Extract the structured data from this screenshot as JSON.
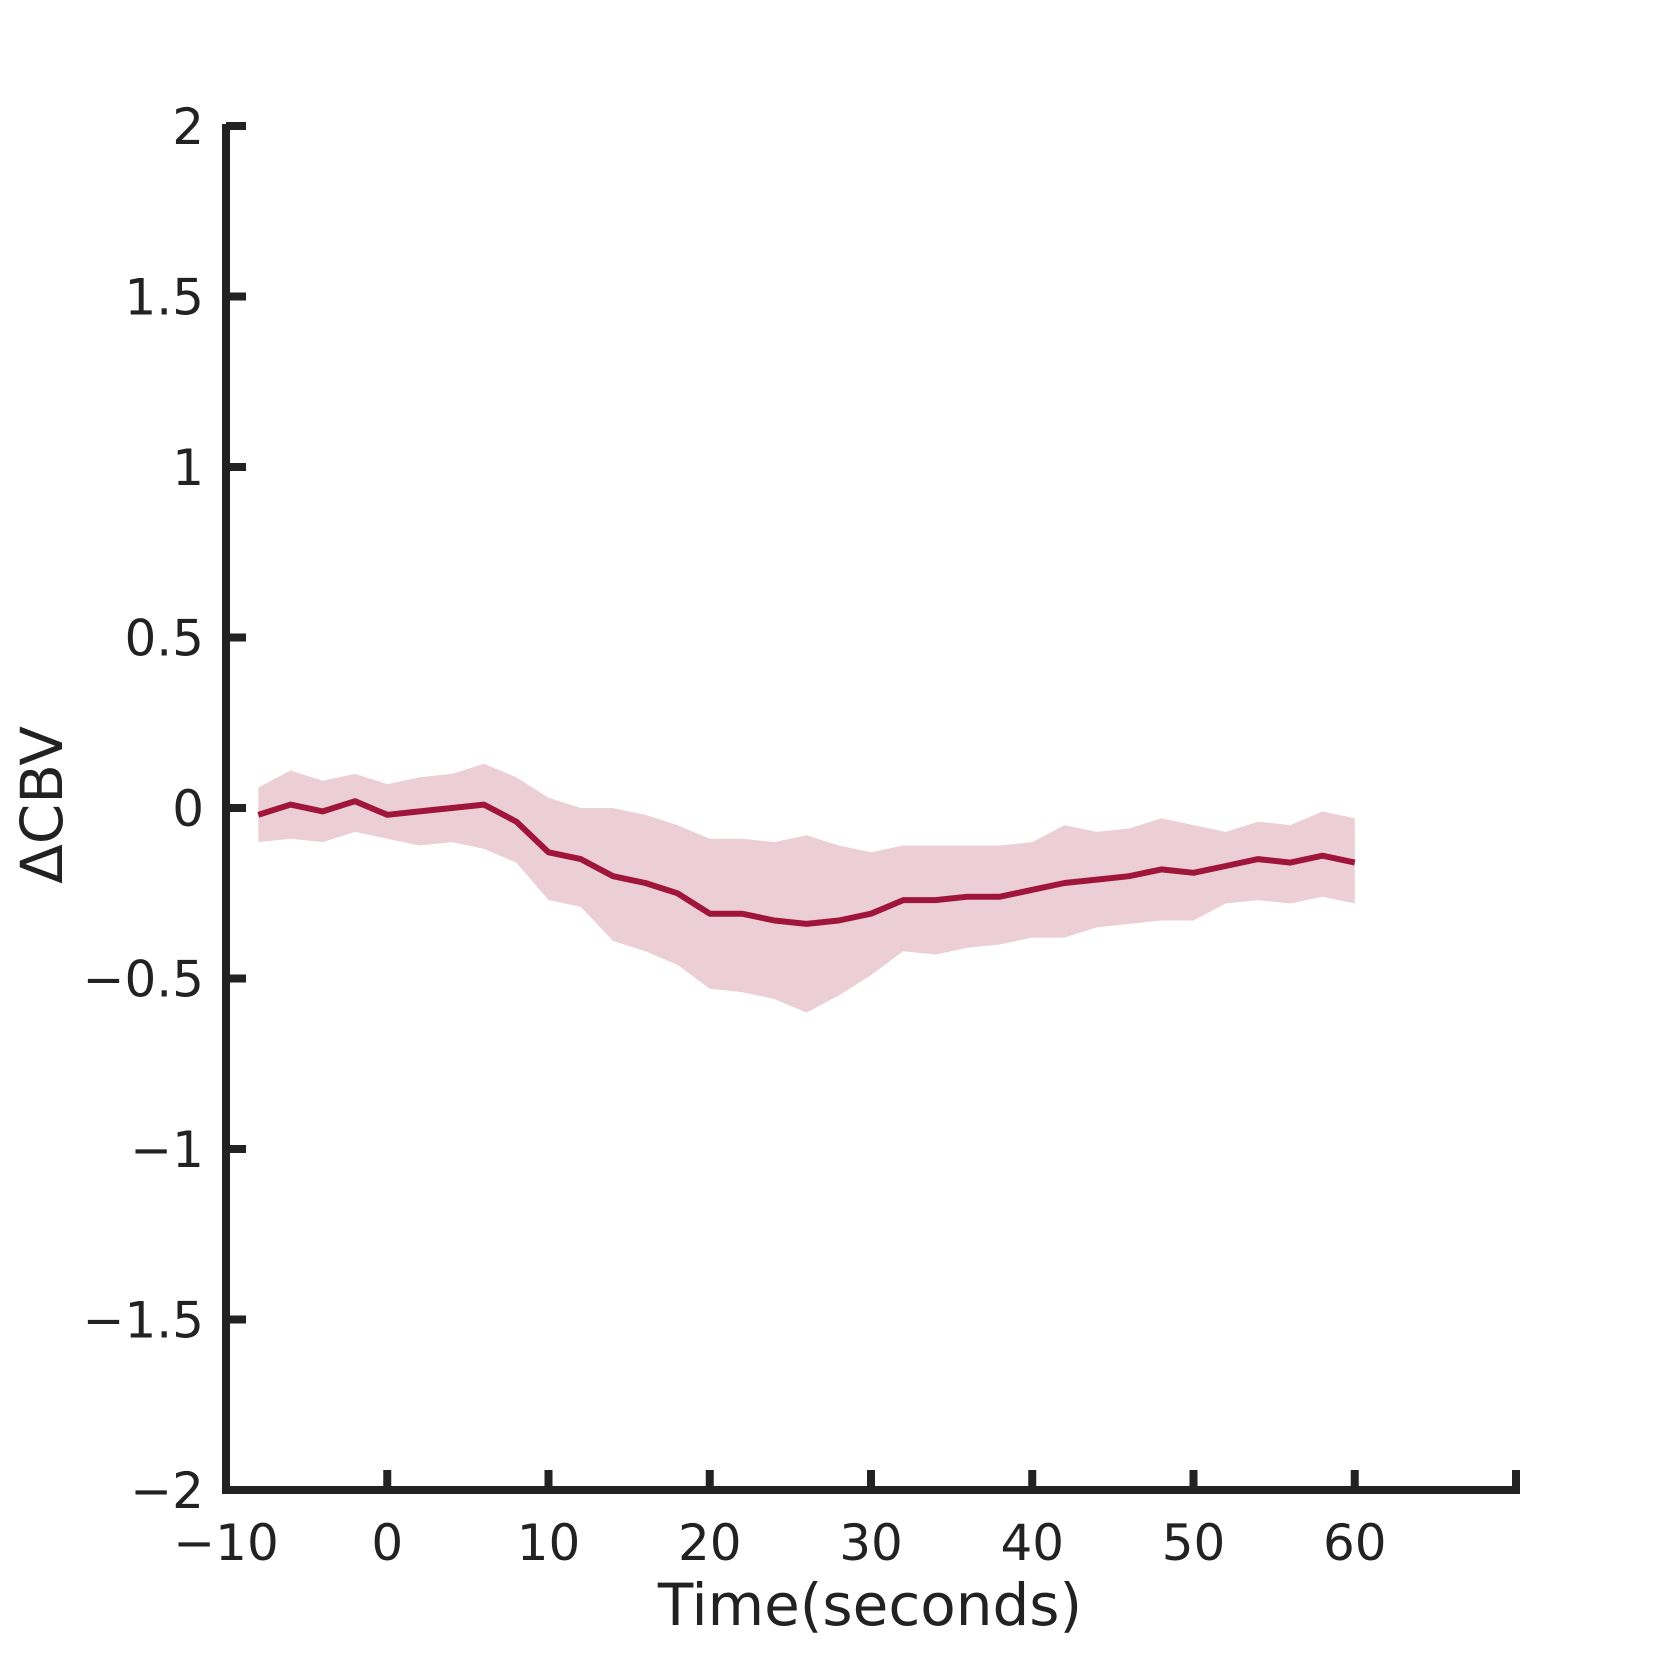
{
  "chart_data": {
    "type": "line",
    "xlabel": "Time(seconds)",
    "ylabel": "ΔCBV",
    "xlim": [
      -10,
      70
    ],
    "ylim": [
      -2,
      2
    ],
    "xticks": [
      -10,
      0,
      10,
      20,
      30,
      40,
      50,
      60
    ],
    "xtick_labels": [
      "−10",
      "0",
      "10",
      "20",
      "30",
      "40",
      "50",
      "60"
    ],
    "yticks": [
      2,
      1.5,
      1,
      0.5,
      0,
      -0.5,
      -1,
      -1.5,
      -2
    ],
    "ytick_labels": [
      "2",
      "1.5",
      "1",
      "0.5",
      "0",
      "−0.5",
      "−1",
      "−1.5",
      "−2"
    ],
    "grid": false,
    "line_color": "#a0163a",
    "band_color": "#eccfd6",
    "series": [
      {
        "x": [
          -8,
          -6,
          -4,
          -2,
          0,
          2,
          4,
          6,
          8,
          10,
          12,
          14,
          16,
          18,
          20,
          22,
          24,
          26,
          28,
          30,
          32,
          34,
          36,
          38,
          40,
          42,
          44,
          46,
          48,
          50,
          52,
          54,
          56,
          58,
          60
        ],
        "y": [
          -0.02,
          0.01,
          -0.01,
          0.02,
          -0.02,
          -0.01,
          0.0,
          0.01,
          -0.04,
          -0.13,
          -0.15,
          -0.2,
          -0.22,
          -0.25,
          -0.31,
          -0.31,
          -0.33,
          -0.34,
          -0.33,
          -0.31,
          -0.27,
          -0.27,
          -0.26,
          -0.26,
          -0.24,
          -0.22,
          -0.21,
          -0.2,
          -0.18,
          -0.19,
          -0.17,
          -0.15,
          -0.16,
          -0.14,
          -0.16
        ],
        "upper": [
          0.06,
          0.11,
          0.08,
          0.1,
          0.07,
          0.09,
          0.1,
          0.13,
          0.09,
          0.03,
          0.0,
          0.0,
          -0.02,
          -0.05,
          -0.09,
          -0.09,
          -0.1,
          -0.08,
          -0.11,
          -0.13,
          -0.11,
          -0.11,
          -0.11,
          -0.11,
          -0.1,
          -0.05,
          -0.07,
          -0.06,
          -0.03,
          -0.05,
          -0.07,
          -0.04,
          -0.05,
          -0.01,
          -0.03
        ],
        "lower": [
          -0.1,
          -0.09,
          -0.1,
          -0.07,
          -0.09,
          -0.11,
          -0.1,
          -0.12,
          -0.16,
          -0.27,
          -0.29,
          -0.39,
          -0.42,
          -0.46,
          -0.53,
          -0.54,
          -0.56,
          -0.6,
          -0.55,
          -0.49,
          -0.42,
          -0.43,
          -0.41,
          -0.4,
          -0.38,
          -0.38,
          -0.35,
          -0.34,
          -0.33,
          -0.33,
          -0.28,
          -0.27,
          -0.28,
          -0.26,
          -0.28
        ]
      }
    ]
  }
}
